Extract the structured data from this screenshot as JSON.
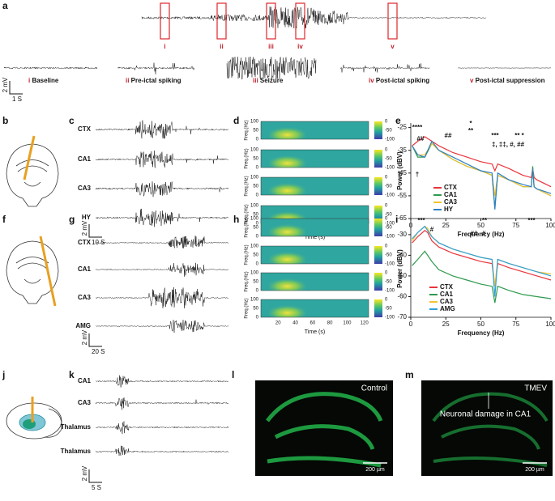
{
  "figure": {
    "a": {
      "label": "a",
      "windows": [
        "i",
        "ii",
        "iii",
        "iv",
        "v"
      ],
      "captions": [
        {
          "numeral": "i",
          "text": "Baseline"
        },
        {
          "numeral": "ii",
          "text": "Pre-ictal spiking"
        },
        {
          "numeral": "iii",
          "text": "Seizure"
        },
        {
          "numeral": "iv",
          "text": "Post-ictal spiking"
        },
        {
          "numeral": "v",
          "text": "Post-ictal suppression"
        }
      ],
      "scale_y": "2 mV",
      "scale_x": "1 S"
    },
    "b": {
      "label": "b"
    },
    "c": {
      "label": "c",
      "channels": [
        "CTX",
        "CA1",
        "CA3",
        "HY"
      ],
      "scale_y": "2 mV",
      "scale_x": "10 S"
    },
    "d": {
      "label": "d",
      "ylabel": "Freq.(Hz)",
      "xlabel": "Time (s)",
      "yticks": [
        0,
        50,
        100
      ],
      "ylim": [
        0,
        100
      ],
      "xticks": [
        50,
        100,
        150,
        200
      ],
      "xlim": [
        0,
        210
      ],
      "colorbar_ticks": [
        0,
        -50,
        -100
      ],
      "colorbar_lim": [
        -100,
        0
      ]
    },
    "f": {
      "label": "f"
    },
    "g": {
      "label": "g",
      "channels": [
        "CTX",
        "CA1",
        "CA3",
        "AMG"
      ],
      "scale_y": "2 mV",
      "scale_x": "20 S"
    },
    "h": {
      "label": "h",
      "ylabel": "Freq.(Hz)",
      "xlabel": "Time (s)",
      "yticks": [
        0,
        50,
        100
      ],
      "ylim": [
        0,
        100
      ],
      "xticks": [
        20,
        40,
        60,
        80,
        100,
        120
      ],
      "xlim": [
        0,
        125
      ],
      "colorbar_ticks": [
        0,
        -50,
        -100
      ],
      "colorbar_lim": [
        -100,
        0
      ]
    },
    "j": {
      "label": "j"
    },
    "k": {
      "label": "k",
      "channels": [
        "CA1",
        "CA3",
        "Thalamus",
        "Thalamus"
      ],
      "scale_y": "2 mV",
      "scale_x": "5 S"
    },
    "l": {
      "label": "l",
      "caption": "Control",
      "scale": "200 µm"
    },
    "m": {
      "label": "m",
      "caption": "TMEV",
      "annotation": "Neuronal damage in CA1",
      "scale": "200 µm"
    }
  },
  "chart_data": [
    {
      "type": "line",
      "panel_label": "e",
      "xlabel": "Frequency (Hz)",
      "ylabel": "Power (dBV)",
      "x": [
        1,
        5,
        10,
        15,
        20,
        30,
        40,
        50,
        58,
        60,
        62,
        70,
        80,
        86,
        87,
        88,
        90,
        100
      ],
      "xlim": [
        0,
        100
      ],
      "xticks": [
        0,
        25,
        50,
        75,
        100
      ],
      "ylim": [
        -65,
        -23
      ],
      "yticks": [
        -25,
        -35,
        -45,
        -55,
        -65
      ],
      "series": [
        {
          "name": "CTX",
          "color": "#e8343c",
          "values": [
            -33,
            -31,
            -29,
            -31,
            -33,
            -36,
            -38,
            -40,
            -41,
            -44,
            -41,
            -43,
            -46,
            -47,
            -43,
            -47,
            -48,
            -51
          ]
        },
        {
          "name": "CA1",
          "color": "#2d9a4e",
          "values": [
            -33,
            -38,
            -38,
            -32,
            -35,
            -39,
            -42,
            -44,
            -46,
            -60,
            -46,
            -48,
            -51,
            -51,
            -42,
            -51,
            -52,
            -55
          ]
        },
        {
          "name": "CA3",
          "color": "#f2c230",
          "values": [
            -33,
            -37,
            -37,
            -32,
            -35,
            -39,
            -42,
            -44,
            -46,
            -55,
            -46,
            -48,
            -51,
            -51,
            -43,
            -51,
            -52,
            -55
          ]
        },
        {
          "name": "HY",
          "color": "#2f7fc1",
          "values": [
            -33,
            -37,
            -38,
            -31,
            -35,
            -38,
            -41,
            -44,
            -45,
            -61,
            -45,
            -48,
            -50,
            -51,
            -43,
            -51,
            -52,
            -54
          ]
        }
      ],
      "annotations": [
        "****",
        "##",
        "##",
        "*",
        "**",
        "***",
        "** *",
        "‡, ‡‡, #, ##",
        "†"
      ]
    },
    {
      "type": "line",
      "panel_label": "i",
      "xlabel": "Frequency (Hz)",
      "ylabel": "Power (dBV)",
      "x": [
        1,
        5,
        10,
        12,
        15,
        20,
        30,
        40,
        50,
        58,
        60,
        62,
        70,
        80,
        90,
        100
      ],
      "xlim": [
        0,
        100
      ],
      "xticks": [
        0,
        25,
        50,
        75,
        100
      ],
      "ylim": [
        -70,
        -23
      ],
      "yticks": [
        -30,
        -40,
        -50,
        -60,
        -70
      ],
      "series": [
        {
          "name": "CTX",
          "color": "#e8343c",
          "values": [
            -34,
            -31,
            -28,
            -29,
            -33,
            -36,
            -39,
            -41,
            -43,
            -44,
            -55,
            -44,
            -46,
            -48,
            -50,
            -52
          ]
        },
        {
          "name": "CA1",
          "color": "#2d9a4e",
          "values": [
            -45,
            -42,
            -38,
            -40,
            -43,
            -47,
            -50,
            -52,
            -54,
            -55,
            -63,
            -55,
            -57,
            -59,
            -60,
            -61
          ]
        },
        {
          "name": "CA3",
          "color": "#f2c230",
          "values": [
            -33,
            -29,
            -26,
            -27,
            -31,
            -34,
            -37,
            -39,
            -41,
            -42,
            -55,
            -42,
            -44,
            -46,
            -48,
            -49
          ]
        },
        {
          "name": "AMG",
          "color": "#2f9fd8",
          "values": [
            -32,
            -29,
            -26,
            -28,
            -31,
            -34,
            -37,
            -39,
            -41,
            -42,
            -60,
            -42,
            -44,
            -46,
            -48,
            -50
          ]
        }
      ],
      "annotations": [
        "***",
        "#",
        "**",
        "***",
        "##",
        "#"
      ]
    }
  ]
}
